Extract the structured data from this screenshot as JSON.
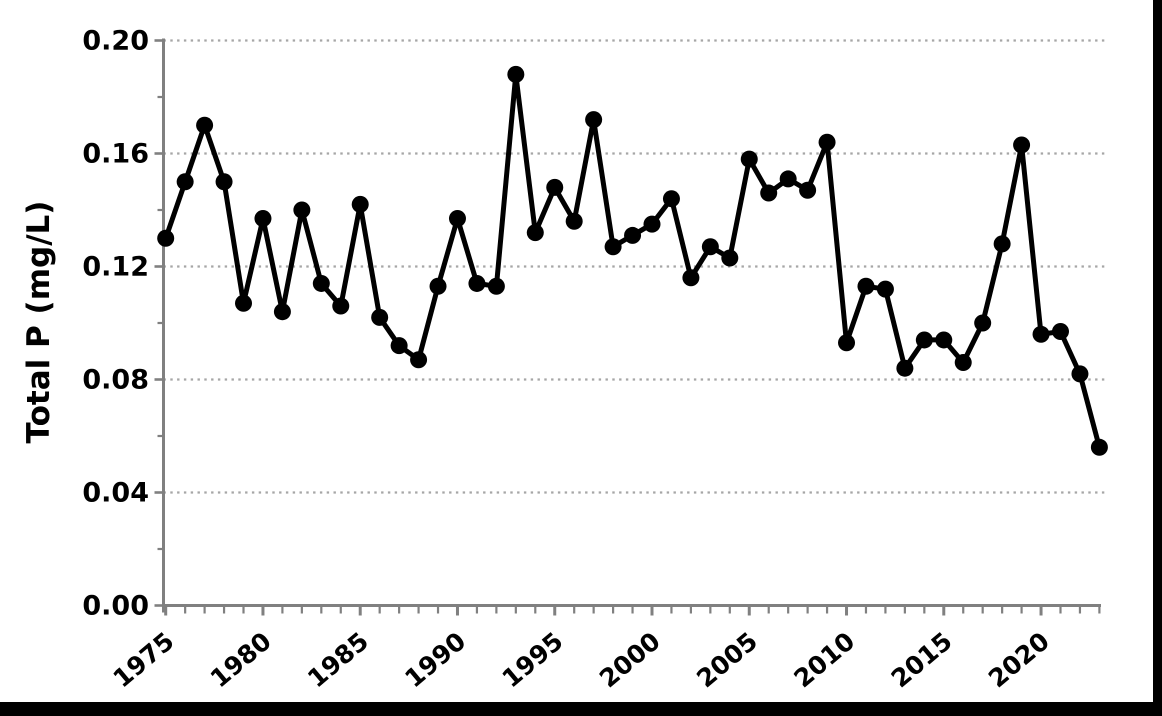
{
  "canvas": {
    "background_color": "#ffffff",
    "frame_right_bar_color": "#000000",
    "frame_bottom_bar_color": "#000000"
  },
  "chart_data": {
    "type": "line",
    "title": "",
    "xlabel": "",
    "ylabel": "Total P (mg/L)",
    "x": [
      1975,
      1976,
      1977,
      1978,
      1979,
      1980,
      1981,
      1982,
      1983,
      1984,
      1985,
      1986,
      1987,
      1988,
      1989,
      1990,
      1991,
      1992,
      1993,
      1994,
      1995,
      1996,
      1997,
      1998,
      1999,
      2000,
      2001,
      2002,
      2003,
      2004,
      2005,
      2006,
      2007,
      2008,
      2009,
      2010,
      2011,
      2012,
      2013,
      2014,
      2015,
      2016,
      2017,
      2018,
      2019,
      2020,
      2021,
      2022,
      2023
    ],
    "values": [
      0.13,
      0.15,
      0.17,
      0.15,
      0.107,
      0.137,
      0.104,
      0.14,
      0.114,
      0.106,
      0.142,
      0.102,
      0.092,
      0.087,
      0.113,
      0.137,
      0.114,
      0.113,
      0.188,
      0.132,
      0.148,
      0.136,
      0.172,
      0.127,
      0.131,
      0.135,
      0.144,
      0.116,
      0.127,
      0.123,
      0.158,
      0.146,
      0.151,
      0.147,
      0.164,
      0.093,
      0.113,
      0.112,
      0.084,
      0.094,
      0.094,
      0.086,
      0.1,
      0.128,
      0.163,
      0.096,
      0.097,
      0.082,
      0.056
    ],
    "xlim": [
      1975,
      2023
    ],
    "ylim": [
      0.0,
      0.2
    ],
    "yticks_major": [
      0.0,
      0.04,
      0.08,
      0.12,
      0.16,
      0.2
    ],
    "ytick_labels": [
      "0.00",
      "0.04",
      "0.08",
      "0.12",
      "0.16",
      "0.20"
    ],
    "yticks_minor": [
      0.02,
      0.06,
      0.1,
      0.14,
      0.18
    ],
    "xticks_major": [
      1975,
      1980,
      1985,
      1990,
      1995,
      2000,
      2005,
      2010,
      2015,
      2020
    ],
    "xtick_labels": [
      "1975",
      "1980",
      "1985",
      "1990",
      "1995",
      "2000",
      "2005",
      "2010",
      "2015",
      "2020"
    ],
    "xticks_minor_step_years": 1,
    "grid": "horizontal dotted lines at 0.04 intervals (0.04 through 0.20), none at 0.00",
    "legend": "none",
    "line_color": "#000000",
    "marker": "filled-circle",
    "marker_color": "#000000",
    "axis_color": "#808080",
    "grid_color": "#a6a6a6",
    "tick_label_color": "#000000",
    "x_labels_rotation_deg": -40
  }
}
